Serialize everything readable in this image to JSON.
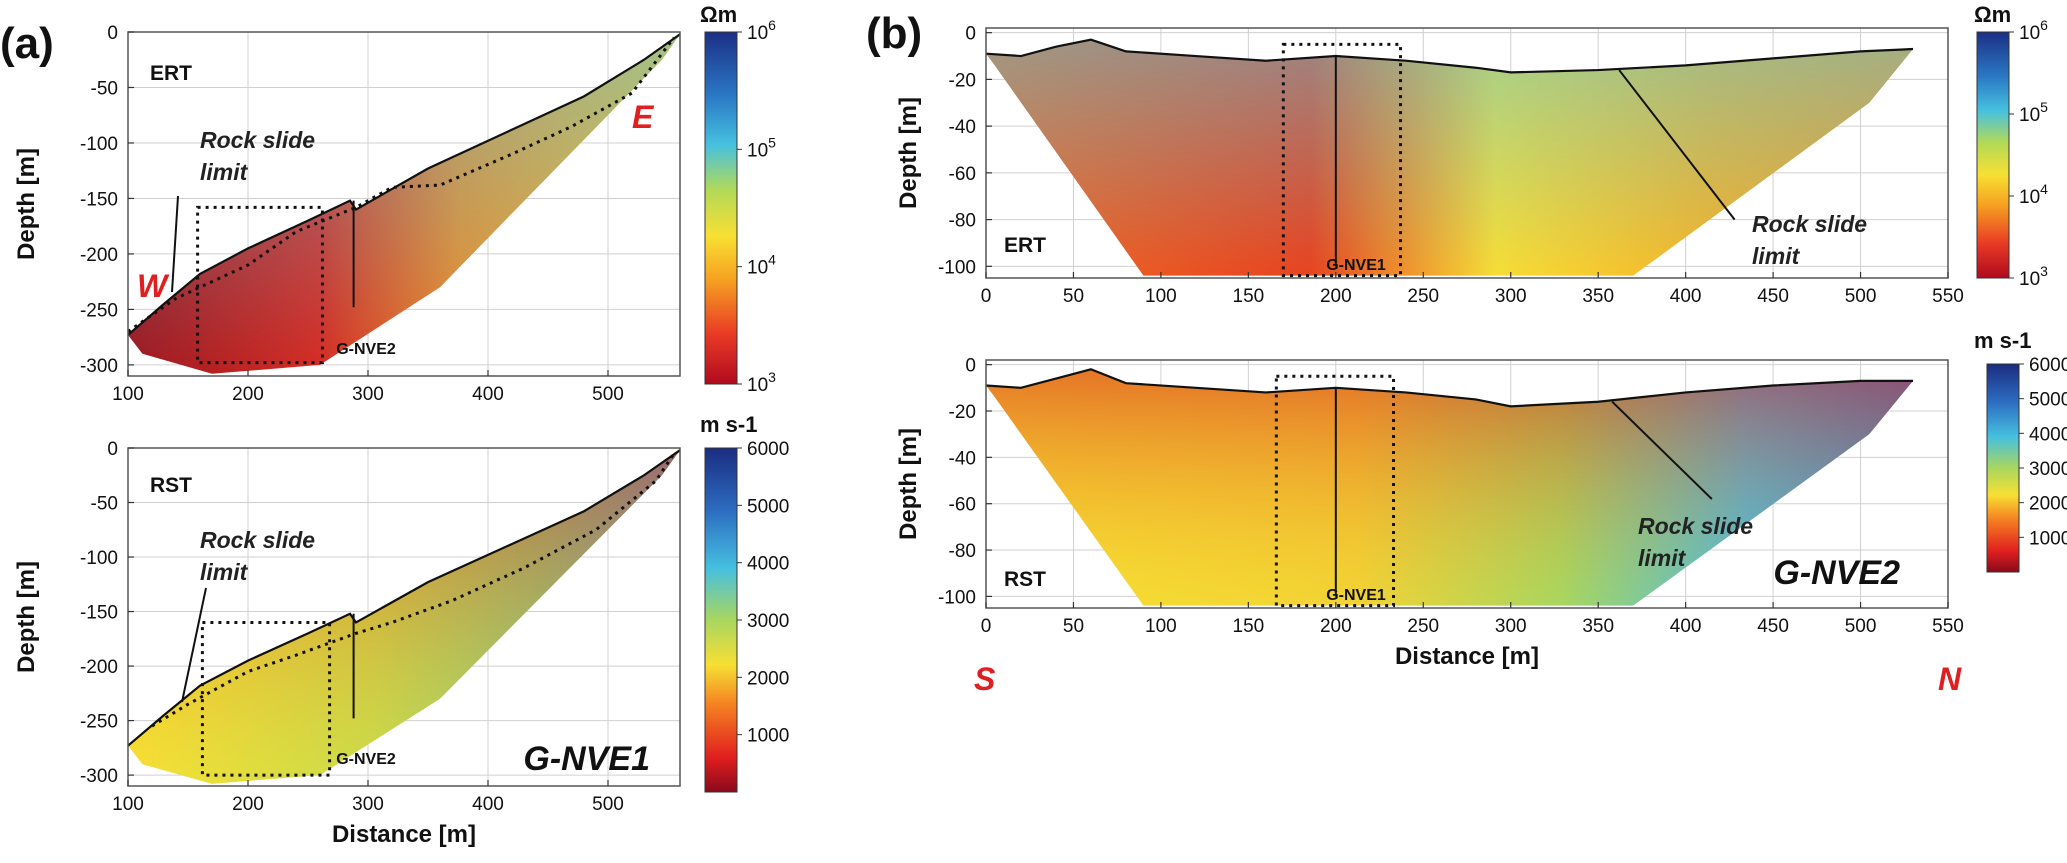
{
  "figure": {
    "panel_a_label": "(a)",
    "panel_b_label": "(b)",
    "compass": {
      "a_west": "W",
      "a_east": "E",
      "b_south": "S",
      "b_north": "N"
    },
    "colors": {
      "compass": "#e02020",
      "frame": "#555555",
      "grid": "#d0d0d0",
      "box": "#111111"
    }
  },
  "chart_data": [
    {
      "id": "a_ert",
      "type": "heatmap",
      "method_label": "ERT",
      "site_label": "",
      "well_label": "G-NVE2",
      "well_x": 288,
      "annotation": [
        "Rock slide",
        "limit"
      ],
      "xlabel": "",
      "ylabel": "Depth  [m]",
      "xlim": [
        100,
        560
      ],
      "ylim": [
        -310,
        0
      ],
      "xticks": [
        100,
        200,
        300,
        400,
        500
      ],
      "yticks": [
        0,
        -50,
        -100,
        -150,
        -200,
        -250,
        -300
      ],
      "grid": true,
      "surface_profile": [
        [
          100,
          -273
        ],
        [
          130,
          -245
        ],
        [
          160,
          -218
        ],
        [
          200,
          -195
        ],
        [
          250,
          -170
        ],
        [
          285,
          -152
        ],
        [
          290,
          -160
        ],
        [
          350,
          -123
        ],
        [
          420,
          -88
        ],
        [
          480,
          -58
        ],
        [
          530,
          -25
        ],
        [
          560,
          -2
        ]
      ],
      "rock_slide_limit": [
        [
          100,
          -270
        ],
        [
          140,
          -240
        ],
        [
          170,
          -225
        ],
        [
          200,
          -210
        ],
        [
          240,
          -180
        ],
        [
          290,
          -158
        ],
        [
          320,
          -140
        ],
        [
          360,
          -138
        ],
        [
          420,
          -110
        ],
        [
          470,
          -85
        ],
        [
          520,
          -55
        ],
        [
          555,
          -5
        ]
      ],
      "inspection_box": {
        "x": [
          158,
          262
        ],
        "y": [
          -158,
          -298
        ]
      },
      "colorbar": {
        "unit": "Ωm",
        "scale": "log",
        "min_exp": 3,
        "max_exp": 6,
        "tick_exponents": [
          6,
          5,
          4,
          3
        ]
      }
    },
    {
      "id": "a_rst",
      "type": "heatmap",
      "method_label": "RST",
      "site_label": "G-NVE1",
      "well_label": "G-NVE2",
      "well_x": 288,
      "annotation": [
        "Rock slide",
        "limit"
      ],
      "xlabel": "Distance [m]",
      "ylabel": "Depth  [m]",
      "xlim": [
        100,
        560
      ],
      "ylim": [
        -310,
        0
      ],
      "xticks": [
        100,
        200,
        300,
        400,
        500
      ],
      "yticks": [
        0,
        -50,
        -100,
        -150,
        -200,
        -250,
        -300
      ],
      "grid": true,
      "surface_profile": [
        [
          100,
          -273
        ],
        [
          130,
          -245
        ],
        [
          160,
          -218
        ],
        [
          200,
          -195
        ],
        [
          250,
          -170
        ],
        [
          285,
          -152
        ],
        [
          290,
          -160
        ],
        [
          350,
          -123
        ],
        [
          420,
          -88
        ],
        [
          480,
          -58
        ],
        [
          530,
          -25
        ],
        [
          560,
          -2
        ]
      ],
      "rock_slide_limit": [
        [
          120,
          -255
        ],
        [
          150,
          -235
        ],
        [
          200,
          -205
        ],
        [
          240,
          -190
        ],
        [
          290,
          -170
        ],
        [
          320,
          -160
        ],
        [
          370,
          -140
        ],
        [
          430,
          -110
        ],
        [
          490,
          -75
        ],
        [
          540,
          -30
        ],
        [
          555,
          -5
        ]
      ],
      "inspection_box": {
        "x": [
          162,
          268
        ],
        "y": [
          -160,
          -300
        ]
      },
      "colorbar": {
        "unit": "m s-1",
        "scale": "linear",
        "min": 0,
        "max": 6000,
        "ticks": [
          6000,
          5000,
          4000,
          3000,
          2000,
          1000
        ]
      }
    },
    {
      "id": "b_ert",
      "type": "heatmap",
      "method_label": "ERT",
      "site_label": "",
      "well_label": "G-NVE1",
      "well_x": 200,
      "annotation": [
        "Rock slide",
        "limit"
      ],
      "xlabel": "",
      "ylabel": "Depth  [m]",
      "xlim": [
        0,
        550
      ],
      "ylim": [
        -105,
        2
      ],
      "xticks": [
        0,
        50,
        100,
        150,
        200,
        250,
        300,
        350,
        400,
        450,
        500,
        550
      ],
      "yticks": [
        0,
        -20,
        -40,
        -60,
        -80,
        -100
      ],
      "grid": true,
      "surface_profile": [
        [
          0,
          -9
        ],
        [
          20,
          -10
        ],
        [
          40,
          -6
        ],
        [
          60,
          -3
        ],
        [
          80,
          -8
        ],
        [
          120,
          -10
        ],
        [
          160,
          -12
        ],
        [
          200,
          -10
        ],
        [
          240,
          -12
        ],
        [
          280,
          -15
        ],
        [
          300,
          -17
        ],
        [
          350,
          -16
        ],
        [
          400,
          -14
        ],
        [
          450,
          -11
        ],
        [
          500,
          -8
        ],
        [
          530,
          -7
        ]
      ],
      "slide_line": [
        [
          362,
          -16
        ],
        [
          428,
          -80
        ]
      ],
      "inspection_box": {
        "x": [
          170,
          237
        ],
        "y": [
          -5,
          -104
        ]
      },
      "colorbar": {
        "unit": "Ωm",
        "scale": "log",
        "min_exp": 3,
        "max_exp": 6,
        "tick_exponents": [
          6,
          5,
          4,
          3
        ]
      }
    },
    {
      "id": "b_rst",
      "type": "heatmap",
      "method_label": "RST",
      "site_label": "G-NVE2",
      "well_label": "G-NVE1",
      "well_x": 200,
      "annotation": [
        "Rock slide",
        "limit"
      ],
      "xlabel": "Distance [m]",
      "ylabel": "Depth  [m]",
      "xlim": [
        0,
        550
      ],
      "ylim": [
        -105,
        2
      ],
      "xticks": [
        0,
        50,
        100,
        150,
        200,
        250,
        300,
        350,
        400,
        450,
        500,
        550
      ],
      "yticks": [
        0,
        -20,
        -40,
        -60,
        -80,
        -100
      ],
      "grid": true,
      "surface_profile": [
        [
          0,
          -9
        ],
        [
          20,
          -10
        ],
        [
          40,
          -6
        ],
        [
          60,
          -2
        ],
        [
          80,
          -8
        ],
        [
          120,
          -10
        ],
        [
          160,
          -12
        ],
        [
          200,
          -10
        ],
        [
          240,
          -12
        ],
        [
          280,
          -15
        ],
        [
          300,
          -18
        ],
        [
          350,
          -16
        ],
        [
          400,
          -12
        ],
        [
          450,
          -9
        ],
        [
          500,
          -7
        ],
        [
          530,
          -7
        ]
      ],
      "slide_line": [
        [
          358,
          -16
        ],
        [
          415,
          -58
        ]
      ],
      "inspection_box": {
        "x": [
          166,
          233
        ],
        "y": [
          -5,
          -104
        ]
      },
      "colorbar": {
        "unit": "m s-1",
        "scale": "linear",
        "min": 0,
        "max": 6000,
        "ticks": [
          6000,
          5000,
          4000,
          3000,
          2000,
          1000
        ]
      }
    }
  ]
}
